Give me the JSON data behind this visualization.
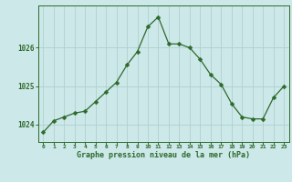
{
  "x": [
    0,
    1,
    2,
    3,
    4,
    5,
    6,
    7,
    8,
    9,
    10,
    11,
    12,
    13,
    14,
    15,
    16,
    17,
    18,
    19,
    20,
    21,
    22,
    23
  ],
  "y": [
    1023.8,
    1024.1,
    1024.2,
    1024.3,
    1024.35,
    1024.6,
    1024.85,
    1025.1,
    1025.55,
    1025.9,
    1026.55,
    1026.8,
    1026.1,
    1026.1,
    1026.0,
    1025.7,
    1025.3,
    1025.05,
    1024.55,
    1024.2,
    1024.15,
    1024.15,
    1024.7,
    1025.0
  ],
  "line_color": "#2d6a2d",
  "marker": "D",
  "marker_size": 2.5,
  "bg_color": "#cde8e8",
  "grid_color": "#b0d0d0",
  "axis_color": "#2d6a2d",
  "tick_label_color": "#2d6a2d",
  "xlabel": "Graphe pression niveau de la mer (hPa)",
  "xlabel_color": "#2d6a2d",
  "ylabel_ticks": [
    1024,
    1025,
    1026
  ],
  "ylim": [
    1023.55,
    1027.1
  ],
  "xlim": [
    -0.5,
    23.5
  ],
  "xticks": [
    0,
    1,
    2,
    3,
    4,
    5,
    6,
    7,
    8,
    9,
    10,
    11,
    12,
    13,
    14,
    15,
    16,
    17,
    18,
    19,
    20,
    21,
    22,
    23
  ]
}
